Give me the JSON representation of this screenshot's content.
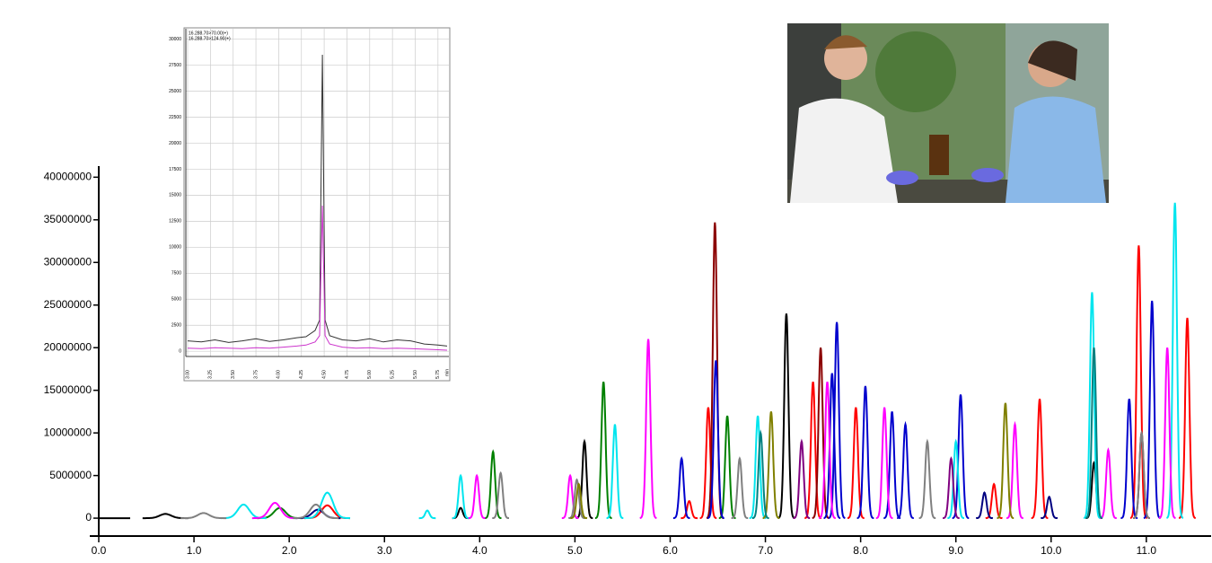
{
  "chart_data": [
    {
      "type": "peaks",
      "xlim": [
        0,
        11.68
      ],
      "ylim": [
        -2100000,
        41300000
      ],
      "xticks": [
        {
          "value": 0,
          "label": "0.0"
        },
        {
          "value": 1,
          "label": "1.0"
        },
        {
          "value": 2,
          "label": "2.0"
        },
        {
          "value": 3,
          "label": "3.0"
        },
        {
          "value": 4,
          "label": "4.0"
        },
        {
          "value": 5,
          "label": "5.0"
        },
        {
          "value": 6,
          "label": "6.0"
        },
        {
          "value": 7,
          "label": "7.0"
        },
        {
          "value": 8,
          "label": "8.0"
        },
        {
          "value": 9,
          "label": "9.0"
        },
        {
          "value": 10,
          "label": "10.0"
        },
        {
          "value": 11,
          "label": "11.0"
        }
      ],
      "yticks": [
        0,
        5000000,
        10000000,
        15000000,
        20000000,
        25000000,
        30000000,
        35000000,
        40000000
      ],
      "series": [
        {
          "color": "#000000",
          "x": [
            0.7,
            3.8,
            5.1,
            7.22,
            10.45
          ],
          "values": [
            500000,
            1200000,
            9000000,
            24000000,
            6500000
          ]
        },
        {
          "color": "#ff0000",
          "x": [
            2.4,
            6.2,
            6.4,
            7.5,
            7.95,
            9.4,
            9.88,
            10.92,
            11.43
          ],
          "values": [
            1500000,
            2000000,
            13000000,
            16000000,
            13000000,
            4000000,
            14000000,
            32000000,
            23500000
          ]
        },
        {
          "color": "#8b0000",
          "x": [
            6.47,
            7.58,
            10.95
          ],
          "values": [
            34700000,
            20000000,
            10000000
          ]
        },
        {
          "color": "#008000",
          "x": [
            1.9,
            4.14,
            5.3,
            6.6
          ],
          "values": [
            1200000,
            7800000,
            16000000,
            12000000
          ]
        },
        {
          "color": "#0000cd",
          "x": [
            6.12,
            6.48,
            7.7,
            7.75,
            8.05,
            8.33,
            8.47,
            9.05,
            10.82,
            11.06
          ],
          "values": [
            7000000,
            18500000,
            17000000,
            23000000,
            15500000,
            12500000,
            11000000,
            14500000,
            14000000,
            25500000
          ]
        },
        {
          "color": "#000080",
          "x": [
            2.3,
            9.3,
            9.98
          ],
          "values": [
            1000000,
            3000000,
            2500000
          ]
        },
        {
          "color": "#00e5ee",
          "x": [
            1.52,
            2.4,
            3.45,
            3.8,
            5.42,
            6.92,
            9.0,
            10.43,
            11.3
          ],
          "values": [
            1600000,
            3000000,
            900000,
            5000000,
            11000000,
            12000000,
            9000000,
            26500000,
            37000000
          ]
        },
        {
          "color": "#ff00ff",
          "x": [
            1.85,
            3.97,
            4.95,
            5.77,
            7.65,
            8.25,
            9.62,
            10.6,
            11.22
          ],
          "values": [
            1800000,
            5000000,
            5000000,
            21000000,
            16000000,
            13000000,
            11000000,
            8000000,
            20000000
          ]
        },
        {
          "color": "#808080",
          "x": [
            1.1,
            2.28,
            4.22,
            5.02,
            6.73,
            8.7,
            10.95
          ],
          "values": [
            600000,
            1600000,
            5300000,
            4500000,
            7000000,
            9000000,
            10000000
          ]
        },
        {
          "color": "#808000",
          "x": [
            5.04,
            7.06,
            9.52
          ],
          "values": [
            4000000,
            12500000,
            13500000
          ]
        },
        {
          "color": "#800080",
          "x": [
            7.38,
            8.95
          ],
          "values": [
            9000000,
            7000000
          ]
        },
        {
          "color": "#008080",
          "x": [
            6.95,
            10.45
          ],
          "values": [
            10000000,
            20000000
          ]
        }
      ]
    },
    {
      "type": "line",
      "xlim": [
        2.98,
        5.87
      ],
      "ylim": [
        -500,
        31000
      ],
      "grid": true,
      "x_unit": "min",
      "xticks": [
        {
          "value": 3,
          "label": "3.00"
        },
        {
          "value": 3.25,
          "label": "3.25"
        },
        {
          "value": 3.5,
          "label": "3.50"
        },
        {
          "value": 3.75,
          "label": "3.75"
        },
        {
          "value": 4,
          "label": "4.00"
        },
        {
          "value": 4.25,
          "label": "4.25"
        },
        {
          "value": 4.5,
          "label": "4.50"
        },
        {
          "value": 4.75,
          "label": "4.75"
        },
        {
          "value": 5,
          "label": "5.00"
        },
        {
          "value": 5.25,
          "label": "5.25"
        },
        {
          "value": 5.5,
          "label": "5.50"
        },
        {
          "value": 5.75,
          "label": "5.75"
        }
      ],
      "yticks": [
        0,
        2500,
        5000,
        7500,
        10000,
        12500,
        15000,
        17500,
        20000,
        22500,
        25000,
        27500,
        30000
      ],
      "x": [
        3.0,
        3.15,
        3.3,
        3.45,
        3.6,
        3.75,
        3.9,
        4.05,
        4.2,
        4.3,
        4.4,
        4.45,
        4.48,
        4.51,
        4.56,
        4.7,
        4.85,
        5.0,
        5.15,
        5.3,
        5.45,
        5.6,
        5.75,
        5.85
      ],
      "series": [
        {
          "name": "16.288.70>70.00(+)",
          "color": "#333333",
          "values": [
            1000,
            900,
            1100,
            850,
            1000,
            1200,
            950,
            1100,
            1300,
            1400,
            2000,
            3000,
            28500,
            3000,
            1500,
            1100,
            1000,
            1200,
            900,
            1100,
            1000,
            700,
            600,
            500
          ]
        },
        {
          "name": "16.288.70>124.90(+)",
          "color": "#cc33cc",
          "values": [
            300,
            250,
            350,
            300,
            250,
            350,
            300,
            400,
            500,
            600,
            900,
            1500,
            14000,
            1500,
            700,
            400,
            300,
            350,
            250,
            300,
            250,
            200,
            150,
            100
          ]
        }
      ]
    }
  ]
}
